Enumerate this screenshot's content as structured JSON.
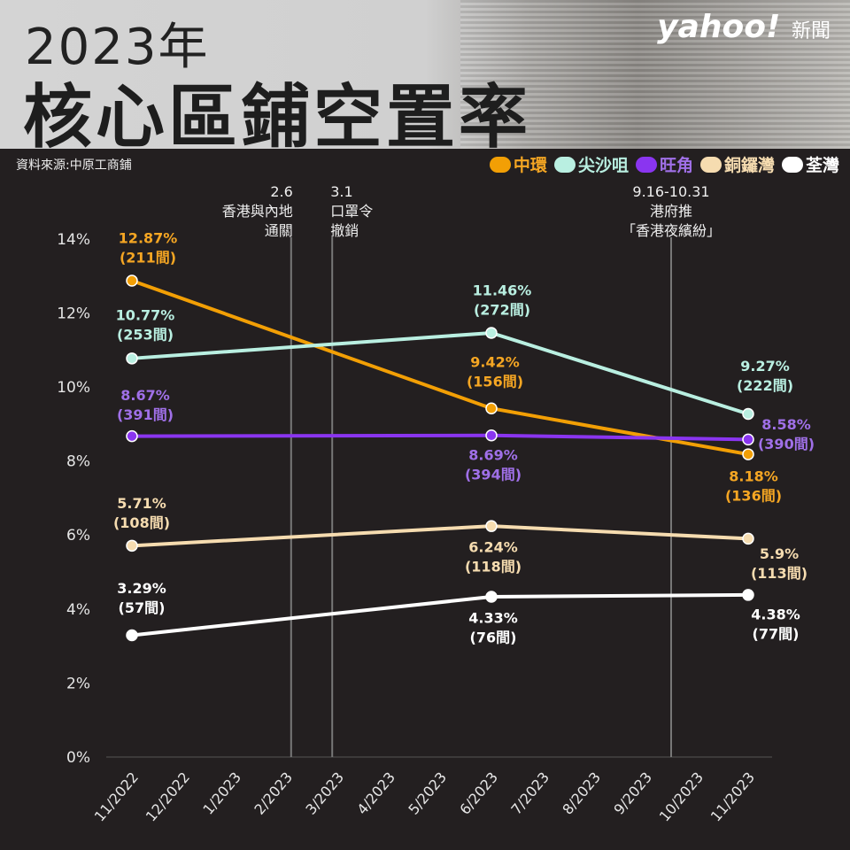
{
  "header": {
    "year": "2023年",
    "title": "核心區鋪空置率",
    "logo": "yahoo!",
    "logo_suffix": "新聞"
  },
  "source": "資料來源:中原工商鋪",
  "chart_data": {
    "type": "line",
    "title": "核心區鋪空置率",
    "categories": [
      "11/2022",
      "12/2022",
      "1/2023",
      "2/2023",
      "3/2023",
      "4/2023",
      "5/2023",
      "6/2023",
      "7/2023",
      "8/2023",
      "9/2023",
      "10/2023",
      "11/2023"
    ],
    "yticks": [
      "0%",
      "2%",
      "4%",
      "6%",
      "8%",
      "10%",
      "12%",
      "14%"
    ],
    "ylim": [
      0,
      14
    ],
    "legend_placement": "top-right",
    "series": [
      {
        "name": "中環",
        "color": "#f29f05",
        "label_color": "#f5a623",
        "x": [
          "11/2022",
          "6/2023",
          "11/2023"
        ],
        "values": [
          12.87,
          9.42,
          8.18
        ],
        "labels": [
          "12.87%",
          "9.42%",
          "8.18%"
        ],
        "counts": [
          "(211間)",
          "(156間)",
          "(136間)"
        ]
      },
      {
        "name": "尖沙咀",
        "color": "#b9efe1",
        "label_color": "#b9efe1",
        "x": [
          "11/2022",
          "6/2023",
          "11/2023"
        ],
        "values": [
          10.77,
          11.46,
          9.27
        ],
        "labels": [
          "10.77%",
          "11.46%",
          "9.27%"
        ],
        "counts": [
          "(253間)",
          "(272間)",
          "(222間)"
        ]
      },
      {
        "name": "旺角",
        "color": "#8a35f0",
        "label_color": "#a070e8",
        "x": [
          "11/2022",
          "6/2023",
          "11/2023"
        ],
        "values": [
          8.67,
          8.69,
          8.58
        ],
        "labels": [
          "8.67%",
          "8.69%",
          "8.58%"
        ],
        "counts": [
          "(391間)",
          "(394間)",
          "(390間)"
        ]
      },
      {
        "name": "銅鑼灣",
        "color": "#f6dcb0",
        "label_color": "#f6dcb0",
        "x": [
          "11/2022",
          "6/2023",
          "11/2023"
        ],
        "values": [
          5.71,
          6.24,
          5.9
        ],
        "labels": [
          "5.71%",
          "6.24%",
          "5.9%"
        ],
        "counts": [
          "(108間)",
          "(118間)",
          "(113間)"
        ]
      },
      {
        "name": "荃灣",
        "color": "#ffffff",
        "label_color": "#ffffff",
        "x": [
          "11/2022",
          "6/2023",
          "11/2023"
        ],
        "values": [
          3.29,
          4.33,
          4.38
        ],
        "labels": [
          "3.29%",
          "4.33%",
          "4.38%"
        ],
        "counts": [
          "(57間)",
          "(76間)",
          "(77間)"
        ]
      }
    ],
    "annotations": [
      {
        "date": "2.6",
        "lines": [
          "香港與內地",
          "通關"
        ],
        "x_month": 3.1,
        "align": "end"
      },
      {
        "date": "3.1",
        "lines": [
          "口罩令",
          "撤銷"
        ],
        "x_month": 3.9,
        "align": "start"
      },
      {
        "date": "9.16-10.31",
        "lines": [
          "港府推",
          "「香港夜繽紛」"
        ],
        "x_month": 10.5,
        "align": "middle"
      }
    ]
  }
}
